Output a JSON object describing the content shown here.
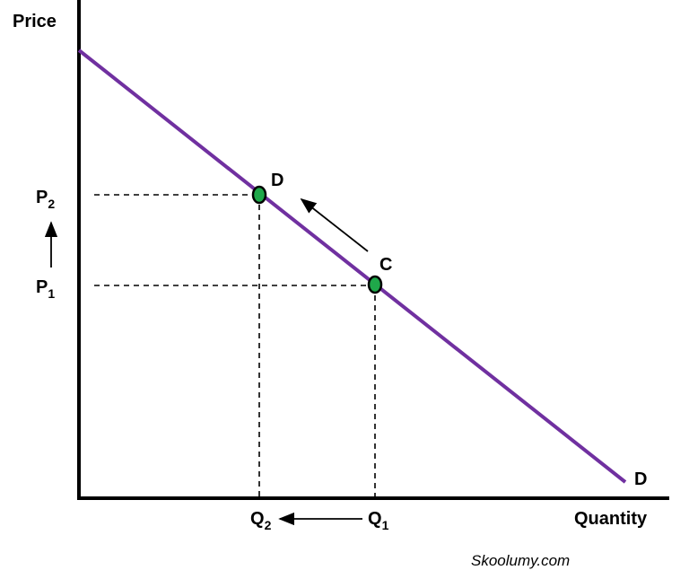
{
  "axes": {
    "y_label": "Price",
    "x_label": "Quantity"
  },
  "price_labels": [
    {
      "letter": "P",
      "sub": "2"
    },
    {
      "letter": "P",
      "sub": "1"
    }
  ],
  "quantity_labels": [
    {
      "letter": "Q",
      "sub": "2"
    },
    {
      "letter": "Q",
      "sub": "1"
    }
  ],
  "points": [
    {
      "label": "D"
    },
    {
      "label": "C"
    }
  ],
  "curve_label": "D",
  "watermark": "Skoolumy.com"
}
